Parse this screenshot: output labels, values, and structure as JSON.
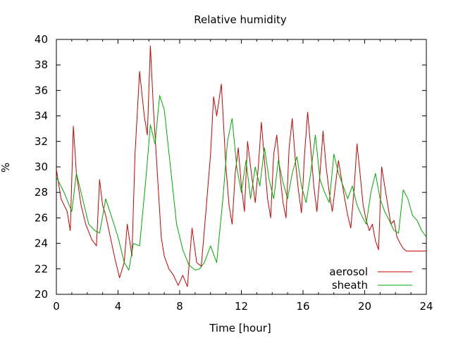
{
  "chart_data": {
    "type": "line",
    "title": "Relative humidity",
    "xlabel": "Time [hour]",
    "ylabel": "%",
    "xlim": [
      0,
      24
    ],
    "ylim": [
      20,
      40
    ],
    "xticks": [
      0,
      4,
      8,
      12,
      16,
      20,
      24
    ],
    "yticks": [
      20,
      22,
      24,
      26,
      28,
      30,
      32,
      34,
      36,
      38,
      40
    ],
    "xtick_labels": [
      "0",
      "4",
      "8",
      "12",
      "16",
      "20",
      "24"
    ],
    "ytick_labels": [
      "20",
      "22",
      "24",
      "26",
      "28",
      "30",
      "32",
      "34",
      "36",
      "38",
      "40"
    ],
    "grid": false,
    "legend_position": "bottom-right",
    "series": [
      {
        "name": "aerosol",
        "color": "#cc0000",
        "x": [
          0,
          0.3,
          0.7,
          0.9,
          1.1,
          1.3,
          1.6,
          1.9,
          2.3,
          2.6,
          2.8,
          3.0,
          3.2,
          3.5,
          3.8,
          4.1,
          4.4,
          4.6,
          4.9,
          5.1,
          5.4,
          5.7,
          5.9,
          6.1,
          6.3,
          6.6,
          6.8,
          7.0,
          7.3,
          7.6,
          7.9,
          8.2,
          8.5,
          8.8,
          9.1,
          9.4,
          9.7,
          10.0,
          10.2,
          10.4,
          10.7,
          11.0,
          11.2,
          11.4,
          11.6,
          11.8,
          12.0,
          12.2,
          12.4,
          12.7,
          12.9,
          13.1,
          13.3,
          13.5,
          13.7,
          13.9,
          14.1,
          14.3,
          14.5,
          14.7,
          14.9,
          15.1,
          15.3,
          15.5,
          15.7,
          15.9,
          16.1,
          16.3,
          16.5,
          16.7,
          16.9,
          17.1,
          17.3,
          17.5,
          17.7,
          17.9,
          18.1,
          18.3,
          18.5,
          18.7,
          18.9,
          19.1,
          19.3,
          19.5,
          19.7,
          19.9,
          20.1,
          20.3,
          20.5,
          20.7,
          20.9,
          21.1,
          21.3,
          21.5,
          21.7,
          21.9,
          22.1,
          22.3,
          22.5,
          22.7,
          22.9,
          23.1,
          23.3,
          23.5,
          23.7,
          23.9,
          24.0
        ],
        "y": [
          29.8,
          27.5,
          26.5,
          25.0,
          33.2,
          29.5,
          27.0,
          25.5,
          24.3,
          23.8,
          29.0,
          27.0,
          26.2,
          24.5,
          22.8,
          21.3,
          22.5,
          25.5,
          23.0,
          31.0,
          37.5,
          34.0,
          32.5,
          39.5,
          34.5,
          28.5,
          24.5,
          23.0,
          22.0,
          21.5,
          20.7,
          21.5,
          20.6,
          25.2,
          22.5,
          22.2,
          26.5,
          31.0,
          35.5,
          34.0,
          36.5,
          30.0,
          27.0,
          25.5,
          29.5,
          31.5,
          28.5,
          26.5,
          32.0,
          29.0,
          27.2,
          30.0,
          33.5,
          30.5,
          27.5,
          26.0,
          31.0,
          32.5,
          29.5,
          27.2,
          26.0,
          31.5,
          33.8,
          30.5,
          28.2,
          26.4,
          31.0,
          34.3,
          31.5,
          28.5,
          26.5,
          29.5,
          32.8,
          30.0,
          28.0,
          26.5,
          28.5,
          30.5,
          29.0,
          27.5,
          26.2,
          25.2,
          28.0,
          31.8,
          29.5,
          27.0,
          25.8,
          25.0,
          25.5,
          24.2,
          23.5,
          30.0,
          28.5,
          27.0,
          25.5,
          25.8,
          24.5,
          24.0,
          23.6,
          23.4,
          23.4,
          23.4,
          23.4,
          23.4,
          23.4,
          23.4,
          23.4
        ]
      },
      {
        "name": "sheath",
        "color": "#00aa00",
        "x": [
          0,
          0.5,
          1.0,
          1.3,
          1.7,
          2.1,
          2.5,
          2.8,
          3.2,
          3.6,
          4.0,
          4.4,
          4.7,
          5.0,
          5.4,
          5.8,
          6.1,
          6.4,
          6.7,
          7.0,
          7.4,
          7.8,
          8.2,
          8.6,
          9.0,
          9.3,
          9.6,
          10.0,
          10.4,
          10.8,
          11.1,
          11.4,
          11.7,
          12.0,
          12.3,
          12.6,
          12.9,
          13.2,
          13.5,
          13.8,
          14.1,
          14.4,
          14.7,
          15.0,
          15.3,
          15.6,
          15.9,
          16.2,
          16.5,
          16.8,
          17.1,
          17.4,
          17.7,
          18.0,
          18.3,
          18.6,
          18.9,
          19.2,
          19.5,
          19.8,
          20.1,
          20.4,
          20.7,
          21.0,
          21.3,
          21.6,
          21.9,
          22.2,
          22.5,
          22.8,
          23.1,
          23.4,
          23.7,
          24.0
        ],
        "y": [
          29.2,
          28.0,
          26.5,
          29.5,
          27.5,
          25.5,
          25.0,
          24.8,
          27.5,
          26.0,
          24.5,
          22.5,
          21.9,
          24.0,
          23.8,
          29.0,
          33.3,
          31.8,
          35.6,
          34.5,
          30.0,
          25.5,
          23.5,
          22.3,
          21.9,
          22.0,
          22.5,
          23.8,
          22.5,
          27.5,
          32.0,
          33.8,
          30.0,
          28.0,
          30.5,
          27.5,
          30.0,
          28.5,
          31.5,
          29.0,
          27.5,
          30.5,
          28.8,
          27.5,
          29.5,
          30.8,
          28.5,
          27.2,
          29.5,
          32.5,
          29.0,
          28.0,
          27.2,
          31.0,
          29.5,
          28.5,
          27.5,
          28.5,
          27.0,
          26.2,
          25.5,
          28.0,
          29.5,
          27.5,
          26.5,
          25.8,
          25.0,
          24.8,
          28.2,
          27.5,
          26.2,
          25.8,
          25.0,
          24.5
        ]
      }
    ]
  }
}
